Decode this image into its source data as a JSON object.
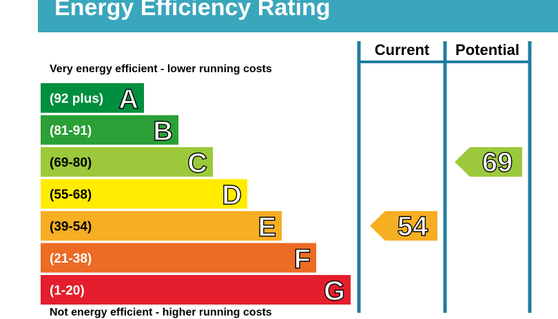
{
  "header": {
    "title": "Energy Efficiency Rating"
  },
  "notes": {
    "top": "Very energy efficient - lower running costs",
    "bottom": "Not energy efficient - higher running costs"
  },
  "colors": {
    "header": "#3aa6bc",
    "frame": "#1e7ea0",
    "A": "#008f3e",
    "B": "#2aa037",
    "C": "#9cc93c",
    "D": "#ffec00",
    "E": "#f6ae23",
    "F": "#ec6b25",
    "G": "#e41e2c"
  },
  "chart_data": {
    "type": "bar",
    "title": "Energy Efficiency Rating",
    "bands": [
      {
        "letter": "A",
        "range": "(92 plus)",
        "min": 92,
        "max": 100
      },
      {
        "letter": "B",
        "range": "(81-91)",
        "min": 81,
        "max": 91
      },
      {
        "letter": "C",
        "range": "(69-80)",
        "min": 69,
        "max": 80
      },
      {
        "letter": "D",
        "range": "(55-68)",
        "min": 55,
        "max": 68
      },
      {
        "letter": "E",
        "range": "(39-54)",
        "min": 39,
        "max": 54
      },
      {
        "letter": "F",
        "range": "(21-38)",
        "min": 21,
        "max": 38
      },
      {
        "letter": "G",
        "range": "(1-20)",
        "min": 1,
        "max": 20
      }
    ],
    "columns": [
      "Current",
      "Potential"
    ],
    "ratings": [
      {
        "column": "Current",
        "value": 54,
        "band": "E"
      },
      {
        "column": "Potential",
        "value": 69,
        "band": "C"
      }
    ]
  }
}
